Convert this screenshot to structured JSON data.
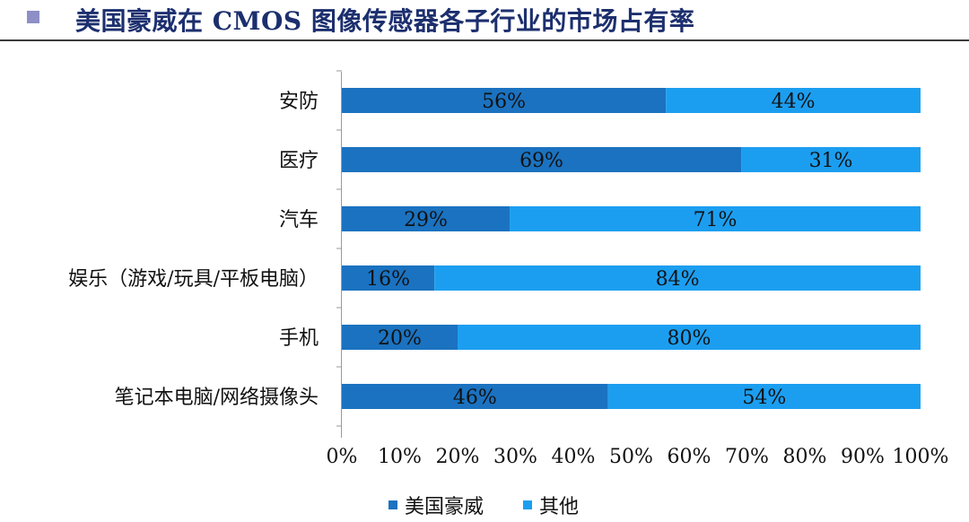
{
  "header": {
    "title": "美国豪威在 CMOS 图像传感器各子行业的市场占有率"
  },
  "colors": {
    "series_1": "#1b72c0",
    "series_2": "#1c9ef0",
    "header_square": "#8d8fc6",
    "title": "#1c2f6e"
  },
  "chart_data": {
    "type": "bar",
    "orientation": "horizontal",
    "stacked": "percent",
    "categories": [
      "安防",
      "医疗",
      "汽车",
      "娱乐（游戏/玩具/平板电脑）",
      "手机",
      "笔记本电脑/网络摄像头"
    ],
    "series": [
      {
        "name": "美国豪威",
        "values": [
          56,
          69,
          29,
          16,
          20,
          46
        ],
        "labels": [
          "56%",
          "69%",
          "29%",
          "16%",
          "20%",
          "46%"
        ]
      },
      {
        "name": "其他",
        "values": [
          44,
          31,
          71,
          84,
          80,
          54
        ],
        "labels": [
          "44%",
          "31%",
          "71%",
          "84%",
          "80%",
          "54%"
        ]
      }
    ],
    "xlim": [
      0,
      100
    ],
    "xticks": [
      "0%",
      "10%",
      "20%",
      "30%",
      "40%",
      "50%",
      "60%",
      "70%",
      "80%",
      "90%",
      "100%"
    ],
    "grid": false,
    "legend_position": "bottom-center"
  }
}
